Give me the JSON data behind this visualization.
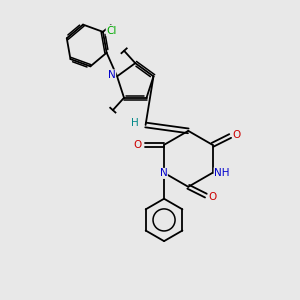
{
  "bg_color": "#e8e8e8",
  "atom_colors": {
    "N": "#0000cc",
    "O": "#cc0000",
    "Cl": "#00aa00",
    "C": "#000000",
    "H": "#008888"
  },
  "bond_color": "#000000",
  "line_width": 1.3,
  "figsize": [
    3.0,
    3.0
  ],
  "dpi": 100
}
